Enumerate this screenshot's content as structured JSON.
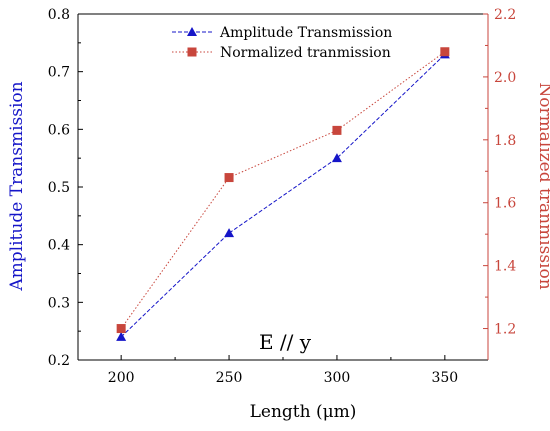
{
  "chart_data": {
    "type": "line",
    "title": "",
    "annotation": "E // y",
    "xlabel": "Length (μm)",
    "ylabel_left": "Amplitude Transmission",
    "ylabel_right": "Normalized tranmission",
    "x": [
      200,
      250,
      300,
      350
    ],
    "x_ticks": [
      "200",
      "250",
      "300",
      "350"
    ],
    "xlim": [
      180,
      370
    ],
    "ylim_left": [
      0.2,
      0.8
    ],
    "ylim_right": [
      1.1,
      2.2
    ],
    "y_ticks_left": [
      "0.2",
      "0.3",
      "0.4",
      "0.5",
      "0.6",
      "0.7",
      "0.8"
    ],
    "y_ticks_right": [
      "1.2",
      "1.4",
      "1.6",
      "1.8",
      "2.0",
      "2.2"
    ],
    "legend_position": "top-center",
    "grid": false,
    "series": [
      {
        "name": "Amplitude  Transmission",
        "axis": "left",
        "marker": "triangle",
        "line_style": "dashed",
        "color": "#1515c8",
        "values": [
          0.24,
          0.42,
          0.55,
          0.73
        ]
      },
      {
        "name": "Normalized tranmission",
        "axis": "right",
        "marker": "square",
        "line_style": "dotted",
        "color": "#c8463c",
        "values": [
          1.2,
          1.68,
          1.83,
          2.08
        ]
      }
    ],
    "colors": {
      "left_axis_label": "#1515c8",
      "right_axis": "#c8463c",
      "axis": "#000000"
    }
  }
}
